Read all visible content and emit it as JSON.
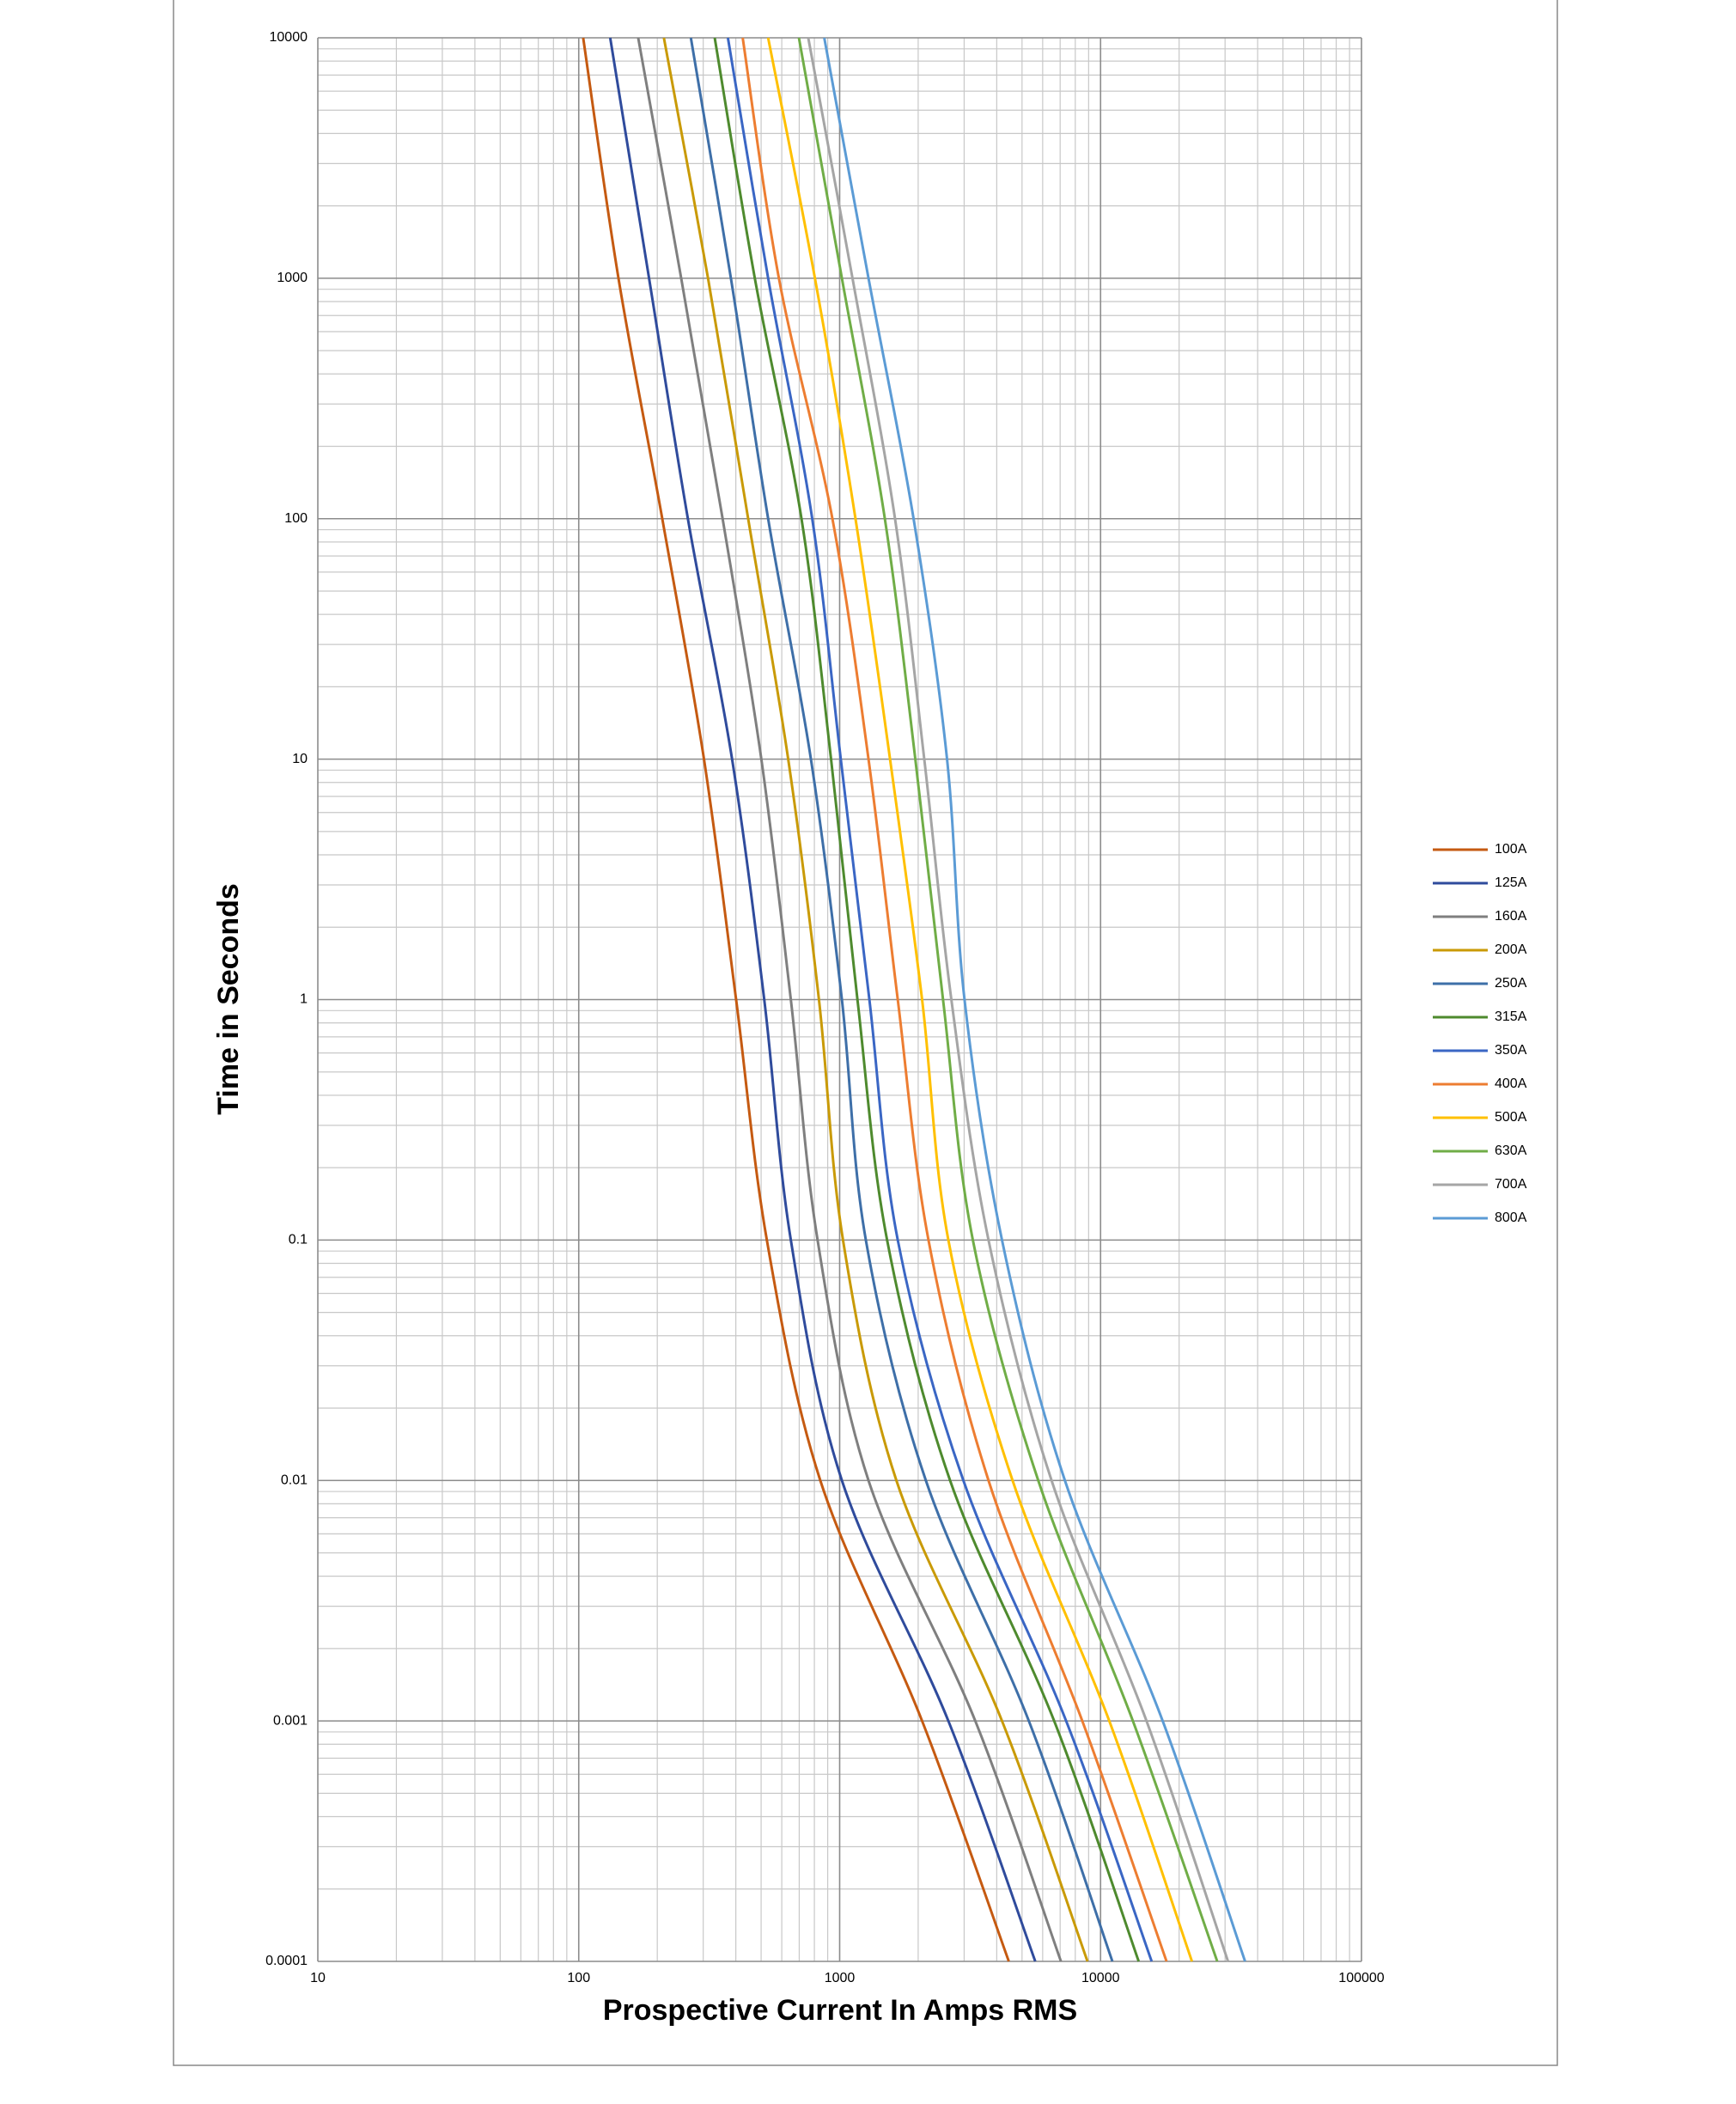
{
  "chart_data": {
    "type": "line",
    "x_label": "Prospective Current In Amps RMS",
    "y_label": "Time in Seconds",
    "xscale": "log",
    "yscale": "log",
    "grid": true,
    "legend": "right",
    "xlim": [
      10,
      100000
    ],
    "xticks": [
      10,
      100,
      1000,
      10000,
      100000
    ],
    "ylim": [
      0.0001,
      10000
    ],
    "yticks": [
      0.0001,
      0.001,
      0.01,
      0.1,
      1,
      10,
      100,
      1000,
      10000
    ],
    "series": [
      {
        "name": "100A",
        "color": "#c55a11",
        "x": [
          104,
          142,
          209,
          302,
          401,
          526,
          843,
          2070,
          4450
        ],
        "values": [
          10000,
          1000,
          100,
          10,
          1,
          0.1,
          0.01,
          0.001,
          0.0001
        ]
      },
      {
        "name": "125A",
        "color": "#2f4b9c",
        "x": [
          132,
          186,
          262,
          387,
          514,
          650,
          1020,
          2610,
          5620
        ],
        "values": [
          10000,
          1000,
          100,
          10,
          1,
          0.1,
          0.01,
          0.001,
          0.0001
        ]
      },
      {
        "name": "160A",
        "color": "#7f7f7f",
        "x": [
          169,
          247,
          356,
          501,
          650,
          823,
          1290,
          3310,
          7050
        ],
        "values": [
          10000,
          1000,
          100,
          10,
          1,
          0.1,
          0.01,
          0.001,
          0.0001
        ]
      },
      {
        "name": "200A",
        "color": "#c99a06",
        "x": [
          212,
          313,
          446,
          635,
          833,
          1030,
          1650,
          4190,
          8910
        ],
        "values": [
          10000,
          1000,
          100,
          10,
          1,
          0.1,
          0.01,
          0.001,
          0.0001
        ]
      },
      {
        "name": "250A",
        "color": "#3e6fa8",
        "x": [
          269,
          383,
          532,
          776,
          1020,
          1260,
          2140,
          5310,
          11100
        ],
        "values": [
          10000,
          1000,
          100,
          10,
          1,
          0.1,
          0.01,
          0.001,
          0.0001
        ]
      },
      {
        "name": "315A",
        "color": "#4e8a2e",
        "x": [
          332,
          473,
          714,
          927,
          1170,
          1520,
          2650,
          6640,
          14000
        ],
        "values": [
          10000,
          1000,
          100,
          10,
          1,
          0.1,
          0.01,
          0.001,
          0.0001
        ]
      },
      {
        "name": "350A",
        "color": "#3a66c4",
        "x": [
          373,
          532,
          785,
          1010,
          1300,
          1670,
          2980,
          7380,
          15700
        ],
        "values": [
          10000,
          1000,
          100,
          10,
          1,
          0.1,
          0.01,
          0.001,
          0.0001
        ]
      },
      {
        "name": "400A",
        "color": "#ed7d31",
        "x": [
          425,
          585,
          938,
          1290,
          1670,
          2190,
          3720,
          8510,
          17900
        ],
        "values": [
          10000,
          1000,
          100,
          10,
          1,
          0.1,
          0.01,
          0.001,
          0.0001
        ]
      },
      {
        "name": "500A",
        "color": "#ffc000",
        "x": [
          532,
          804,
          1150,
          1560,
          2070,
          2610,
          4600,
          10800,
          22400
        ],
        "values": [
          10000,
          1000,
          100,
          10,
          1,
          0.1,
          0.01,
          0.001,
          0.0001
        ]
      },
      {
        "name": "630A",
        "color": "#70ad47",
        "x": [
          698,
          1020,
          1490,
          1950,
          2490,
          3240,
          5770,
          13300,
          28000
        ],
        "values": [
          10000,
          1000,
          100,
          10,
          1,
          0.1,
          0.01,
          0.001,
          0.0001
        ]
      },
      {
        "name": "700A",
        "color": "#a5a5a5",
        "x": [
          758,
          1120,
          1630,
          2110,
          2680,
          3720,
          6490,
          15000,
          30800
        ],
        "values": [
          10000,
          1000,
          100,
          10,
          1,
          0.1,
          0.01,
          0.001,
          0.0001
        ]
      },
      {
        "name": "800A",
        "color": "#5b9bd5",
        "x": [
          873,
          1290,
          1920,
          2580,
          3010,
          4190,
          7300,
          17300,
          35800
        ],
        "values": [
          10000,
          1000,
          100,
          10,
          1,
          0.1,
          0.01,
          0.001,
          0.0001
        ]
      }
    ]
  }
}
